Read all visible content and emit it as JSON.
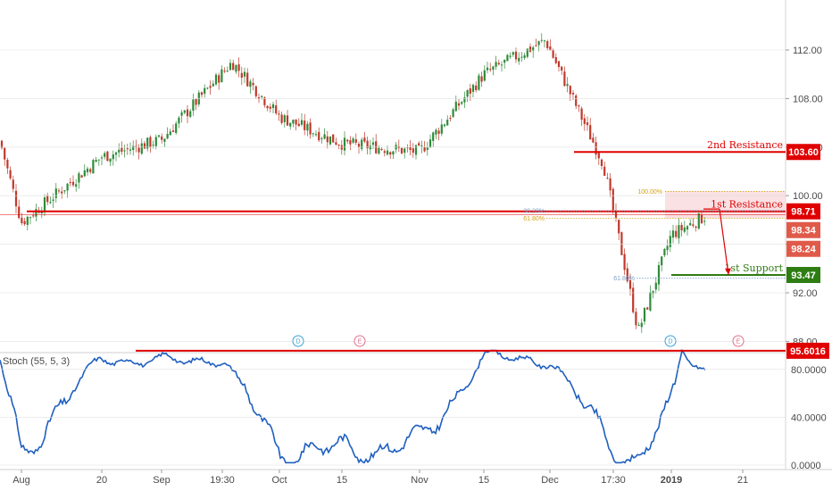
{
  "chart_data": [
    {
      "type": "candlestick",
      "y_axis": {
        "min": 86.5,
        "max": 116,
        "ticks": [
          "112.00",
          "108.00",
          "104.00",
          "100.00",
          "96.00",
          "92.00",
          "88.00"
        ],
        "tick_values": [
          112,
          108,
          104,
          100,
          96,
          92,
          88
        ]
      },
      "x_axis": {
        "ticks": [
          "Aug",
          "20",
          "Sep",
          "19:30",
          "Oct",
          "15",
          "Nov",
          "15",
          "Dec",
          "17:30",
          "2019",
          "21"
        ]
      },
      "approx_close_path": [
        {
          "label": "start",
          "value": 104.5
        },
        {
          "label": "Aug",
          "value": 97.8
        },
        {
          "label": "20",
          "value": 103.2
        },
        {
          "label": "Sep",
          "value": 104.6
        },
        {
          "label": "19:30",
          "value": 111.0
        },
        {
          "label": "Oct",
          "value": 106.5
        },
        {
          "label": "15",
          "value": 104.3
        },
        {
          "label": "Nov",
          "value": 103.6
        },
        {
          "label": "15",
          "value": 110.0
        },
        {
          "label": "Dec",
          "value": 112.8
        },
        {
          "label": "17:30",
          "value": 102.6
        },
        {
          "label": "low",
          "value": 88.8
        },
        {
          "label": "2019",
          "value": 96.8
        },
        {
          "label": "last",
          "value": 98.3
        }
      ],
      "levels": [
        {
          "name": "2nd Resistance",
          "value": 103.6,
          "label": "103.60",
          "color": "#e00000"
        },
        {
          "name": "1st Resistance",
          "value": 98.71,
          "label": "98.71",
          "color": "#e00000"
        },
        {
          "name": "1st Support",
          "value": 93.47,
          "label": "93.47",
          "color": "#2e7d12"
        }
      ],
      "price_tags": [
        {
          "label": "98.34",
          "value": 98.34,
          "color": "#e05a4a"
        },
        {
          "label": "98.24",
          "value": 98.24,
          "color": "#e05a4a"
        }
      ],
      "fibonacci": [
        {
          "label": "100.00%",
          "value": 100.35,
          "color": "#d4a017"
        },
        {
          "label": "38.20%",
          "value": 98.75,
          "color": "#7a9ec8"
        },
        {
          "label": "61.80%",
          "value": 98.15,
          "color": "#d4a017"
        },
        {
          "label": "61.80%",
          "value": 93.2,
          "color": "#7a9ec8"
        }
      ],
      "events": [
        {
          "label": "D",
          "color": "#3aa0d8"
        },
        {
          "label": "E",
          "color": "#e0708a"
        },
        {
          "label": "D",
          "color": "#3aa0d8"
        },
        {
          "label": "E",
          "color": "#e0708a"
        }
      ],
      "up_color": "#2e8b3a",
      "down_color": "#c0392b"
    },
    {
      "type": "line",
      "title": "Stoch (55, 5, 3)",
      "y_axis": {
        "min": 0,
        "max": 100,
        "ticks": [
          "80.0000",
          "40.0000",
          "0.0000"
        ],
        "tick_values": [
          80,
          40,
          0
        ]
      },
      "approx_values": [
        {
          "label": "start",
          "value": 88
        },
        {
          "label": "Aug",
          "value": 10
        },
        {
          "label": "20",
          "value": 90
        },
        {
          "label": "Sep",
          "value": 86
        },
        {
          "label": "19:30",
          "value": 90
        },
        {
          "label": "Oct",
          "value": 12
        },
        {
          "label": "15",
          "value": 12
        },
        {
          "label": "Nov",
          "value": 18
        },
        {
          "label": "15",
          "value": 90
        },
        {
          "label": "Dec",
          "value": 88
        },
        {
          "label": "17:30",
          "value": 15
        },
        {
          "label": "low",
          "value": 3
        },
        {
          "label": "2019",
          "value": 48
        },
        {
          "label": "peak",
          "value": 95.6
        },
        {
          "label": "last",
          "value": 80
        }
      ],
      "level": {
        "value": 95.6016,
        "label": "95.6016",
        "color": "#e00000"
      },
      "line_color": "#1f5fbf"
    }
  ],
  "colors": {
    "resistance": "#e00000",
    "support": "#2e7d12",
    "zone": "#f8d7da",
    "grid": "#e0e0e0"
  }
}
